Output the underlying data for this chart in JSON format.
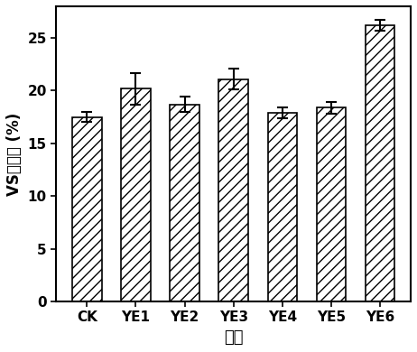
{
  "categories": [
    "CK",
    "YE1",
    "YE2",
    "YE3",
    "YE4",
    "YE5",
    "YE6"
  ],
  "values": [
    17.5,
    20.2,
    18.7,
    21.1,
    17.9,
    18.4,
    26.2
  ],
  "errors": [
    0.5,
    1.5,
    0.7,
    1.0,
    0.5,
    0.55,
    0.55
  ],
  "ylabel": "VS降解率 (%)",
  "xlabel": "菌株",
  "ylim": [
    0,
    28
  ],
  "yticks": [
    0,
    5,
    10,
    15,
    20,
    25
  ],
  "bar_color": "white",
  "hatch": "///",
  "bar_edgecolor": "black",
  "background_color": "white",
  "figsize": [
    4.62,
    3.9
  ],
  "dpi": 100,
  "bar_width": 0.6,
  "capsize": 4,
  "errorbar_color": "black",
  "errorbar_linewidth": 1.5,
  "axis_label_fontsize": 12,
  "tick_fontsize": 11,
  "spine_linewidth": 1.5
}
